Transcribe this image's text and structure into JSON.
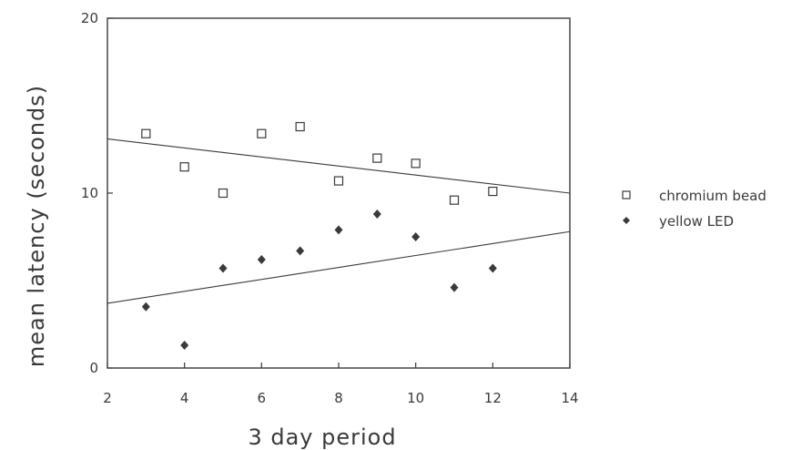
{
  "chart_data": {
    "type": "scatter",
    "title": "",
    "xlabel": "3 day period",
    "ylabel": "mean latency (seconds)",
    "xlim": [
      2,
      14
    ],
    "ylim": [
      0,
      20
    ],
    "xticks": [
      "2",
      "4",
      "6",
      "8",
      "10",
      "12",
      "14"
    ],
    "yticks": [
      "0",
      "10",
      "20"
    ],
    "grid": false,
    "legend_position": "right",
    "series": [
      {
        "name": "chromium bead",
        "marker": "open-square",
        "points": [
          {
            "x": 3,
            "y": 13.4
          },
          {
            "x": 4,
            "y": 11.5
          },
          {
            "x": 5,
            "y": 10.0
          },
          {
            "x": 6,
            "y": 13.4
          },
          {
            "x": 7,
            "y": 13.8
          },
          {
            "x": 8,
            "y": 10.7
          },
          {
            "x": 9,
            "y": 12.0
          },
          {
            "x": 10,
            "y": 11.7
          },
          {
            "x": 11,
            "y": 9.6
          },
          {
            "x": 12,
            "y": 10.1
          }
        ],
        "trend": [
          {
            "x": 2,
            "y": 13.1
          },
          {
            "x": 14,
            "y": 10.0
          }
        ]
      },
      {
        "name": "yellow LED",
        "marker": "filled-diamond",
        "points": [
          {
            "x": 3,
            "y": 3.5
          },
          {
            "x": 4,
            "y": 1.3
          },
          {
            "x": 5,
            "y": 5.7
          },
          {
            "x": 6,
            "y": 6.2
          },
          {
            "x": 7,
            "y": 6.7
          },
          {
            "x": 8,
            "y": 7.9
          },
          {
            "x": 9,
            "y": 8.8
          },
          {
            "x": 10,
            "y": 7.5
          },
          {
            "x": 11,
            "y": 4.6
          },
          {
            "x": 12,
            "y": 5.7
          }
        ],
        "trend": [
          {
            "x": 2,
            "y": 3.7
          },
          {
            "x": 14,
            "y": 7.8
          }
        ]
      }
    ]
  },
  "colors": {
    "ink": "#3a3a3a",
    "background": "#ffffff"
  }
}
